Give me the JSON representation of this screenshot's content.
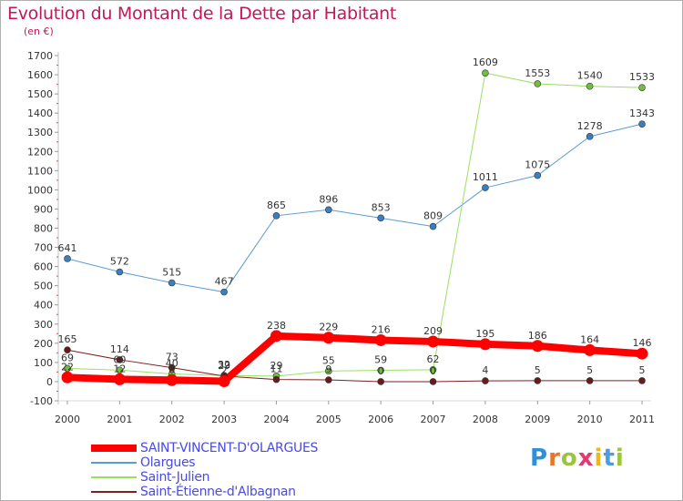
{
  "title": "Evolution du Montant de la Dette par Habitant",
  "subtitle": "(en €)",
  "logo": {
    "text": "Proxiti",
    "colors": [
      "#2f8fd8",
      "#e8752b",
      "#9bc53d",
      "#e23a6b",
      "#f2b619",
      "#4a9de0",
      "#9bc53d"
    ]
  },
  "chart_data": {
    "type": "line",
    "x": [
      "2000",
      "2001",
      "2002",
      "2003",
      "2004",
      "2005",
      "2006",
      "2007",
      "2008",
      "2009",
      "2010",
      "2011"
    ],
    "ylim": [
      -100,
      1700
    ],
    "yticks": [
      -100,
      0,
      100,
      200,
      300,
      400,
      500,
      600,
      700,
      800,
      900,
      1000,
      1100,
      1200,
      1300,
      1400,
      1500,
      1600,
      1700
    ],
    "grid": false,
    "legend_position": "bottom-left",
    "series": [
      {
        "name": "Olargues",
        "color": "#5b9bd5",
        "marker": "#3a7fc0",
        "width": 1,
        "values": [
          641,
          572,
          515,
          467,
          865,
          896,
          853,
          809,
          1011,
          1075,
          1278,
          1343
        ],
        "labels": [
          "641",
          "572",
          "515",
          "467",
          "865",
          "896",
          "853",
          "809",
          "1011",
          "1075",
          "1278",
          "1343"
        ]
      },
      {
        "name": "Saint-Julien",
        "color": "#99e060",
        "marker": "#70c040",
        "width": 1,
        "values": [
          69,
          60,
          40,
          32,
          29,
          55,
          59,
          62,
          1609,
          1553,
          1540,
          1533
        ],
        "labels": [
          "69",
          "60",
          "40",
          "32",
          "29",
          "55",
          "59",
          "62",
          "1609",
          "1553",
          "1540",
          "1533"
        ]
      },
      {
        "name": "Saint-Étienne-d'Albagnan",
        "color": "#7a2020",
        "marker": "#6a1a1a",
        "width": 1,
        "values": [
          165,
          114,
          73,
          29,
          11,
          9,
          0,
          0,
          4,
          5,
          5,
          5
        ],
        "labels": [
          "165",
          "114",
          "73",
          "29",
          "11",
          "9",
          "0",
          "0",
          "4",
          "5",
          "5",
          "5"
        ]
      },
      {
        "name": "SAINT-VINCENT-D'OLARGUES",
        "color": "#ff0000",
        "marker": "#ff0000",
        "width": 8,
        "values": [
          22,
          12,
          8,
          2,
          238,
          229,
          216,
          209,
          195,
          186,
          164,
          146
        ],
        "labels": [
          "22",
          "12",
          "8",
          "2",
          "238",
          "229",
          "216",
          "209",
          "195",
          "186",
          "164",
          "146"
        ]
      }
    ],
    "legend": [
      {
        "name": "SAINT-VINCENT-D'OLARGUES",
        "color": "#ff0000",
        "width": 8
      },
      {
        "name": "Olargues",
        "color": "#5b9bd5",
        "width": 2
      },
      {
        "name": "Saint-Julien",
        "color": "#99e060",
        "width": 2
      },
      {
        "name": "Saint-Étienne-d'Albagnan",
        "color": "#7a2020",
        "width": 2
      }
    ]
  }
}
